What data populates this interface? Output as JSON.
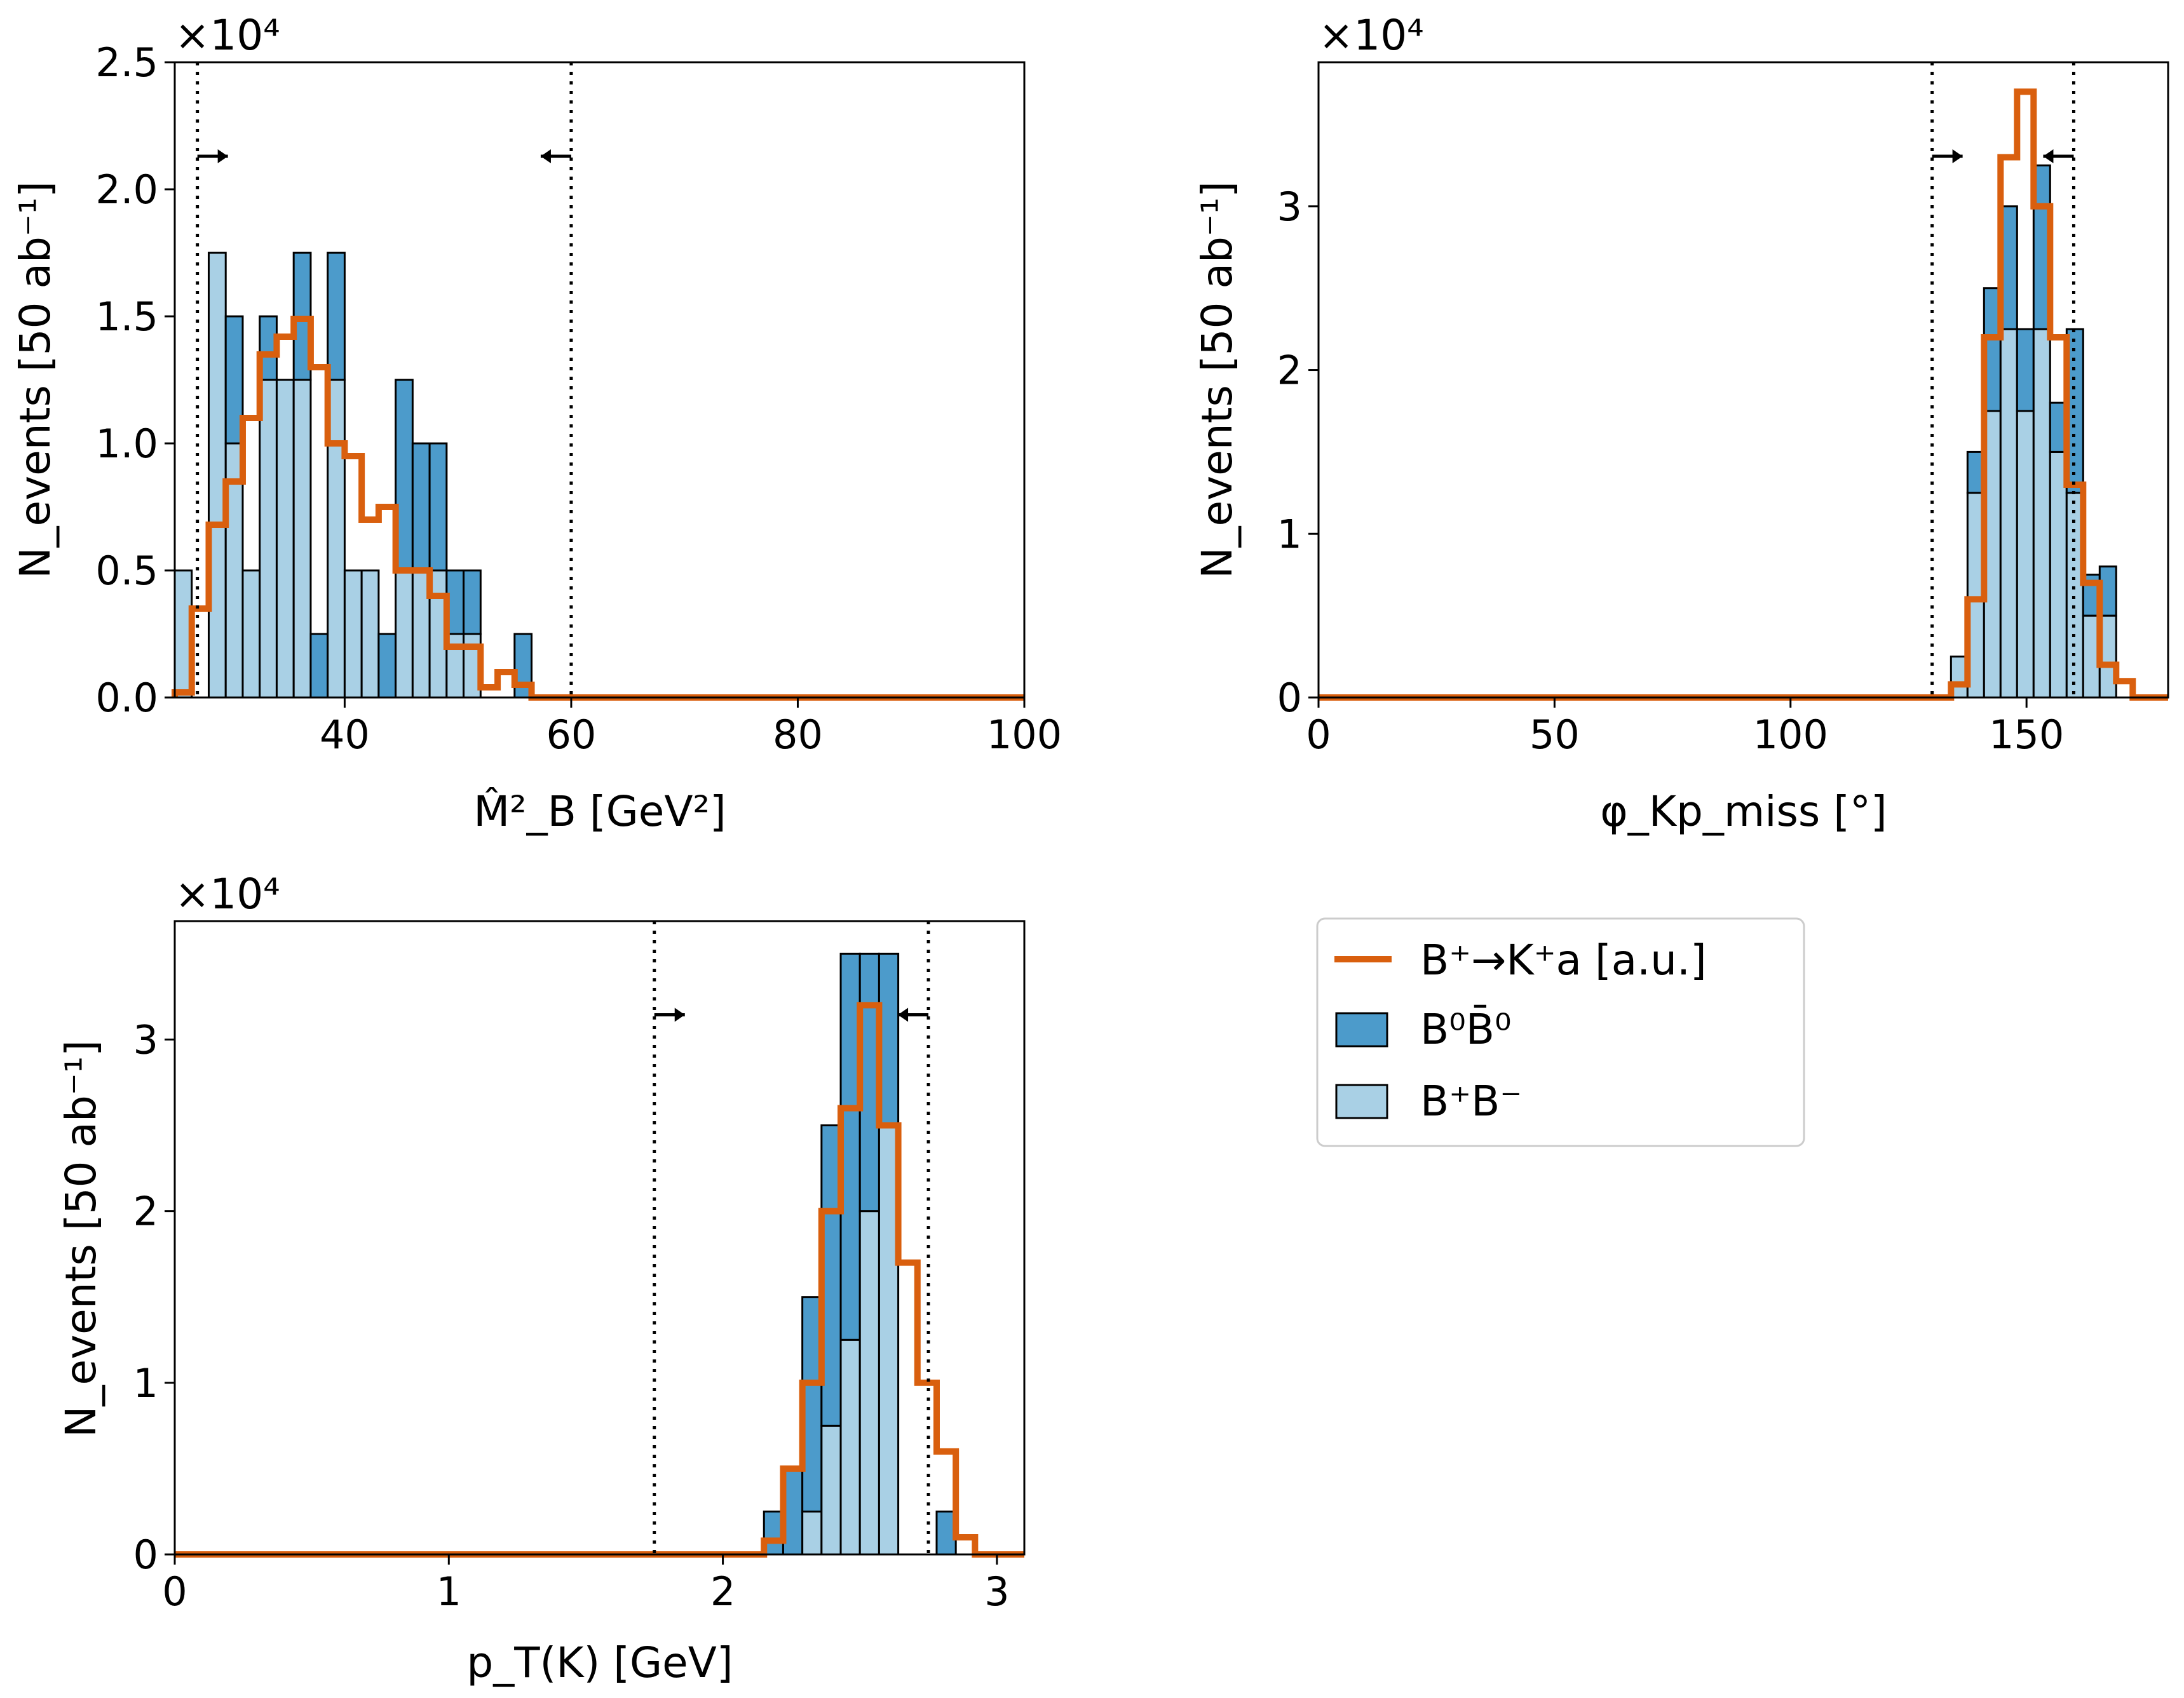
{
  "colors": {
    "b0b0bar": "#4c9bcb",
    "bpbm": "#a9d0e5",
    "signal": "#d95f0e",
    "edge": "#000000"
  },
  "legend": {
    "placement": "lower-right",
    "entries": [
      {
        "name": "B⁺→K⁺a [a.u.]",
        "kind": "line"
      },
      {
        "name": "B⁰B̄⁰",
        "kind": "patch"
      },
      {
        "name": "B⁺B⁻",
        "kind": "patch"
      }
    ]
  },
  "chart_data": [
    {
      "type": "bar",
      "name": "mb2",
      "xlabel": "M̂²_B [GeV²]",
      "ylabel": "N_events [50 ab⁻¹]",
      "multiplier": "×10⁴",
      "xlim": [
        25,
        100
      ],
      "ylim": [
        0,
        25000
      ],
      "xticks": [
        40,
        60,
        80,
        100
      ],
      "yticks": [
        0,
        5000,
        10000,
        15000,
        20000,
        25000
      ],
      "ytick_labels": [
        "0.0",
        "0.5",
        "1.0",
        "1.5",
        "2.0",
        "2.5"
      ],
      "cuts": [
        27,
        60
      ],
      "bin_edges": [
        25,
        26.5,
        28,
        29.5,
        31,
        32.5,
        34,
        35.5,
        37,
        38.5,
        40,
        41.5,
        43,
        44.5,
        46,
        47.5,
        49,
        50.5,
        52,
        53.5,
        55,
        56.5,
        58,
        59.5,
        61
      ],
      "series": [
        {
          "name": "B⁺B⁻",
          "values": [
            5000,
            0,
            17500,
            10000,
            5000,
            12500,
            12500,
            12500,
            0,
            12500,
            5000,
            5000,
            0,
            5000,
            5000,
            5000,
            2500,
            2500,
            0,
            0,
            0,
            0,
            0,
            0
          ]
        },
        {
          "name": "B⁰B̄⁰",
          "values": [
            0,
            0,
            0,
            5000,
            0,
            2500,
            0,
            5000,
            2500,
            5000,
            0,
            0,
            2500,
            7500,
            5000,
            5000,
            2500,
            2500,
            0,
            0,
            2500,
            0,
            0,
            0
          ]
        },
        {
          "name": "B⁺→K⁺a [a.u.]",
          "values": [
            200,
            3500,
            6800,
            8500,
            11000,
            13500,
            14200,
            14900,
            13000,
            10000,
            9500,
            7000,
            7500,
            5000,
            5000,
            4000,
            2000,
            2000,
            400,
            1000,
            500,
            0,
            0,
            0
          ]
        }
      ]
    },
    {
      "type": "bar",
      "name": "phi",
      "xlabel": "φ_Kp_miss [°]",
      "ylabel": "N_events [50 ab⁻¹]",
      "multiplier": "×10⁴",
      "xlim": [
        0,
        180
      ],
      "ylim": [
        0,
        38800
      ],
      "xticks": [
        0,
        50,
        100,
        150
      ],
      "yticks": [
        0,
        10000,
        20000,
        30000
      ],
      "ytick_labels": [
        "0",
        "1",
        "2",
        "3"
      ],
      "cuts": [
        130,
        160
      ],
      "bin_edges": [
        134,
        137.5,
        141,
        144.5,
        148,
        151.5,
        155,
        158.5,
        162,
        165.5,
        169,
        172.5
      ],
      "series": [
        {
          "name": "B⁺B⁻",
          "values": [
            2500,
            12500,
            17500,
            22500,
            17500,
            22500,
            15000,
            12500,
            5000,
            5000,
            0
          ]
        },
        {
          "name": "B⁰B̄⁰",
          "values": [
            0,
            2500,
            7500,
            7500,
            5000,
            10000,
            3000,
            10000,
            2500,
            3000,
            0
          ]
        },
        {
          "name": "B⁺→K⁺a [a.u.]",
          "values": [
            800,
            6000,
            22000,
            33000,
            37000,
            30000,
            22000,
            13000,
            7000,
            2000,
            1000
          ]
        }
      ]
    },
    {
      "type": "bar",
      "name": "pt",
      "xlabel": "p_T(K) [GeV]",
      "ylabel": "N_events [50 ab⁻¹]",
      "multiplier": "×10⁴",
      "xlim": [
        0,
        3.1
      ],
      "ylim": [
        0,
        36900
      ],
      "xticks": [
        0,
        1,
        2,
        3
      ],
      "yticks": [
        0,
        10000,
        20000,
        30000
      ],
      "ytick_labels": [
        "0",
        "1",
        "2",
        "3"
      ],
      "cuts": [
        1.75,
        2.75
      ],
      "bin_edges": [
        2.15,
        2.22,
        2.29,
        2.36,
        2.43,
        2.5,
        2.57,
        2.64,
        2.71,
        2.78,
        2.85,
        2.92
      ],
      "series": [
        {
          "name": "B⁺B⁻",
          "values": [
            0,
            0,
            2500,
            7500,
            12500,
            20000,
            25000,
            0,
            0,
            0,
            0
          ]
        },
        {
          "name": "B⁰B̄⁰",
          "values": [
            2500,
            5000,
            12500,
            17500,
            22500,
            15000,
            10000,
            0,
            0,
            2500,
            0
          ]
        },
        {
          "name": "B⁺→K⁺a [a.u.]",
          "values": [
            800,
            5000,
            10000,
            20000,
            26000,
            32000,
            25000,
            17000,
            10000,
            6000,
            1000
          ]
        }
      ]
    }
  ]
}
